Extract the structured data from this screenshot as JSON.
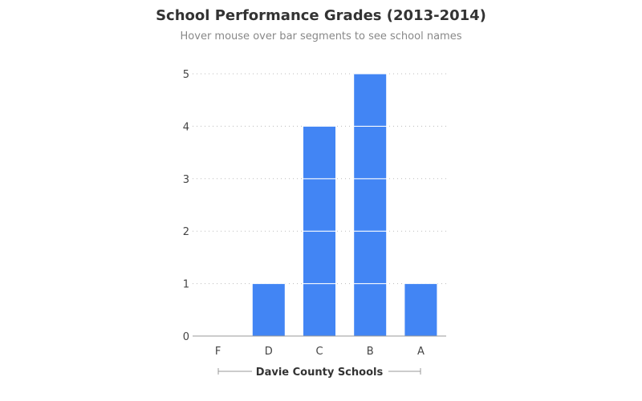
{
  "chart_data": {
    "type": "bar",
    "title": "School Performance Grades (2013-2014)",
    "subtitle": "Hover mouse over bar segments to see school names",
    "xlabel": "Davie County Schools",
    "ylabel": "",
    "categories": [
      "F",
      "D",
      "C",
      "B",
      "A"
    ],
    "values": [
      0,
      1,
      4,
      5,
      1
    ],
    "ylim": [
      0,
      5
    ],
    "yticks": [
      "0",
      "1",
      "2",
      "3",
      "4",
      "5"
    ],
    "grid": true,
    "bar_color": "#4285f4"
  }
}
